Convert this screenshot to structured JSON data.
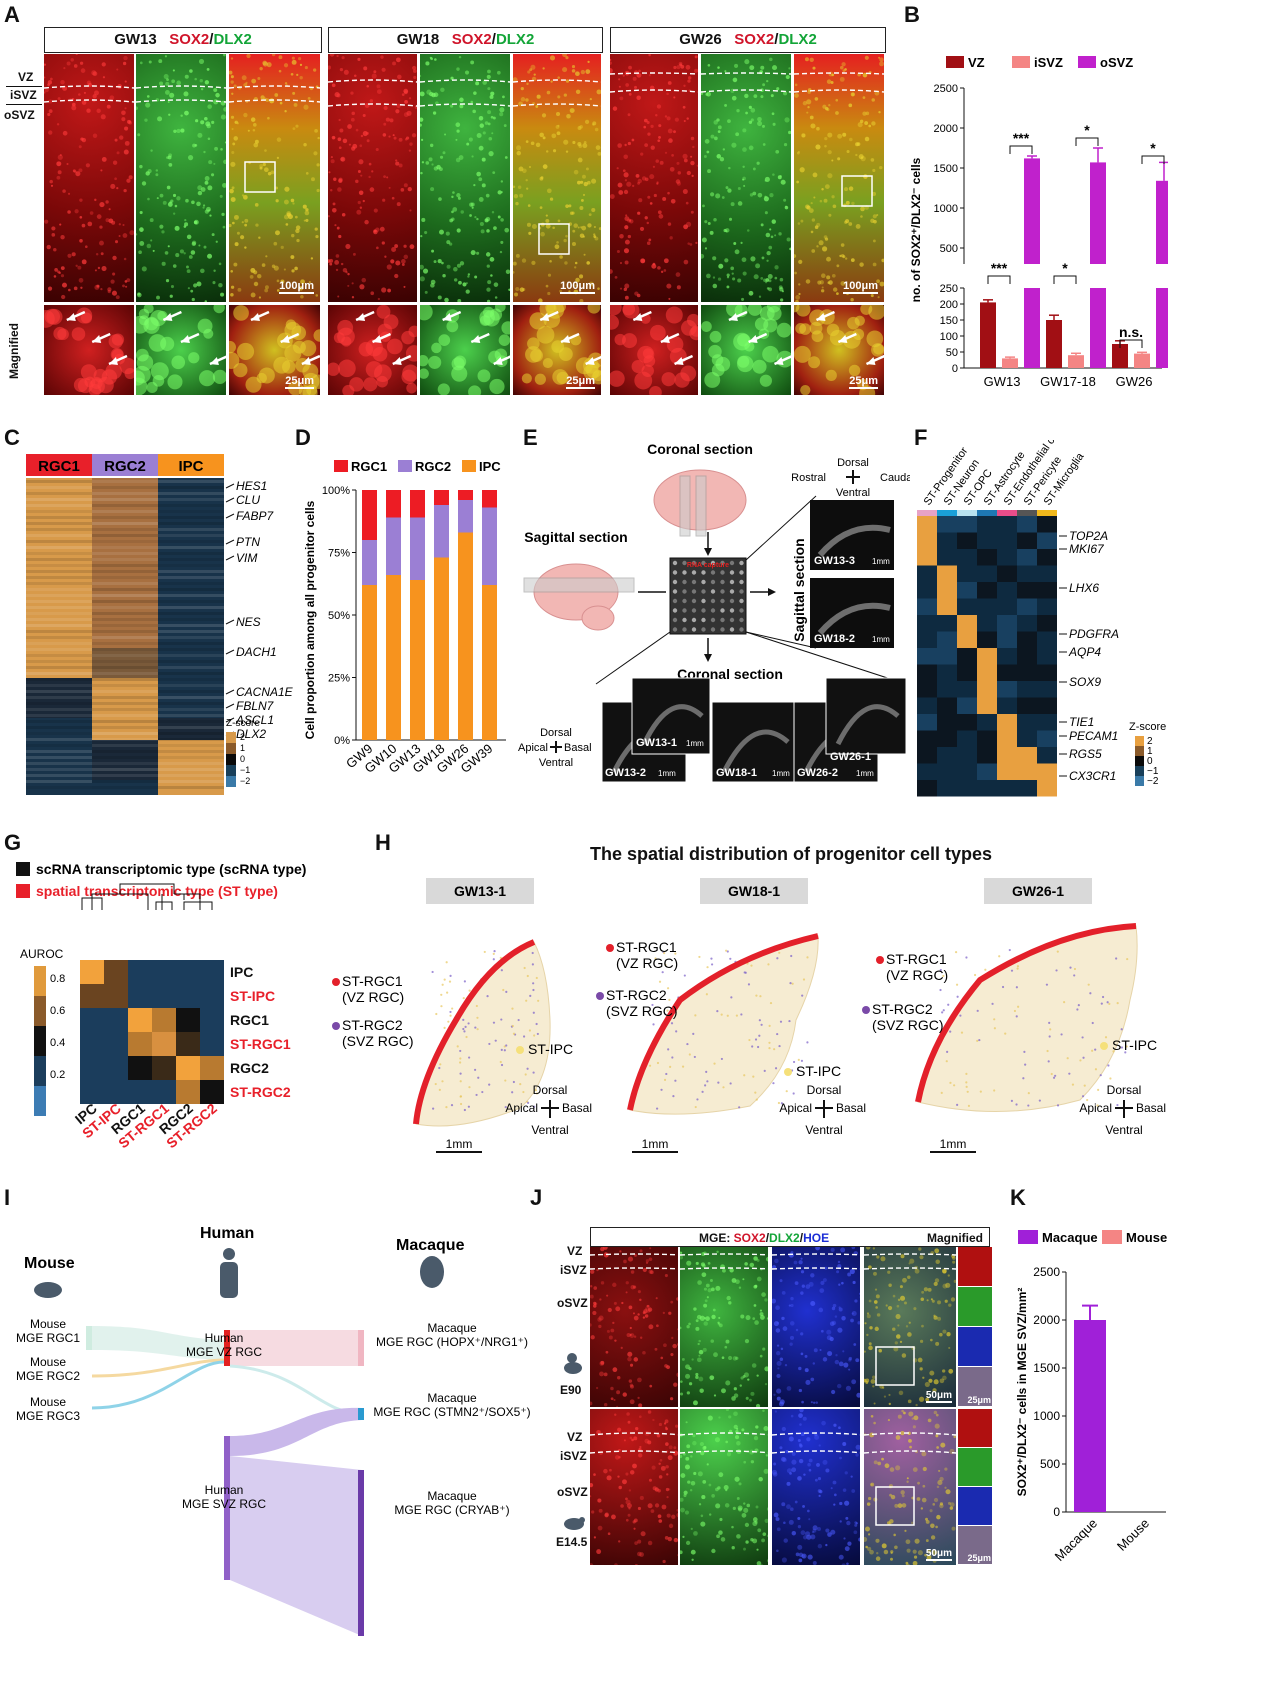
{
  "panels": {
    "A": "A",
    "B": "B",
    "C": "C",
    "D": "D",
    "E": "E",
    "F": "F",
    "G": "G",
    "H": "H",
    "I": "I",
    "J": "J",
    "K": "K"
  },
  "panelA": {
    "headers": [
      {
        "week": "GW13",
        "m1": "SOX2",
        "sep": "/",
        "m2": "DLX2"
      },
      {
        "week": "GW18",
        "m1": "SOX2",
        "sep": "/",
        "m2": "DLX2"
      },
      {
        "week": "GW26",
        "m1": "SOX2",
        "sep": "/",
        "m2": "DLX2"
      }
    ],
    "zones": {
      "vz": "VZ",
      "isvz": "iSVZ",
      "osvz": "oSVZ"
    },
    "magnified": "Magnified",
    "scale_large": "100μm",
    "scale_small": "25μm"
  },
  "panelB": {
    "legend": [
      "VZ",
      "iSVZ",
      "oSVZ"
    ],
    "ylabel": "no. of SOX2⁺/DLX2⁻ cells",
    "sig": [
      "***",
      "*",
      "*",
      "***",
      "*",
      "n.s."
    ]
  },
  "chart_data": [
    {
      "type": "bar",
      "id": "B",
      "title": "",
      "categories": [
        "GW13",
        "GW17-18",
        "GW26"
      ],
      "series": [
        {
          "name": "VZ",
          "color": "#a10f14",
          "values": [
            205,
            150,
            75
          ],
          "errors": [
            8,
            15,
            10
          ]
        },
        {
          "name": "iSVZ",
          "color": "#f48584",
          "values": [
            30,
            40,
            45
          ],
          "errors": [
            4,
            6,
            4
          ]
        },
        {
          "name": "oSVZ",
          "color": "#c021cc",
          "values": [
            1620,
            1570,
            1340
          ],
          "errors": [
            30,
            180,
            230
          ]
        }
      ],
      "ylabel": "no. of SOX2⁺/DLX2⁻ cells",
      "yticks_low": [
        "0",
        "50",
        "100",
        "150",
        "200",
        "250"
      ],
      "yticks_high": [
        "500",
        "1000",
        "1500",
        "2000",
        "2500"
      ],
      "ylim": [
        0,
        2500
      ]
    },
    {
      "type": "bar",
      "id": "D",
      "stacked": true,
      "categories": [
        "GW9",
        "GW10",
        "GW13",
        "GW18",
        "GW26",
        "GW39"
      ],
      "series": [
        {
          "name": "IPC",
          "color": "#f7931e",
          "values": [
            62,
            66,
            64,
            73,
            83,
            62
          ]
        },
        {
          "name": "RGC2",
          "color": "#9b7fd4",
          "values": [
            18,
            23,
            25,
            21,
            13,
            31
          ]
        },
        {
          "name": "RGC1",
          "color": "#ed1c24",
          "values": [
            20,
            11,
            11,
            6,
            4,
            7
          ]
        }
      ],
      "legend": [
        "RGC1",
        "RGC2",
        "IPC"
      ],
      "ylabel": "Cell proportion among all progenitor cells",
      "yticks": [
        "0%",
        "25%",
        "50%",
        "75%",
        "100%"
      ],
      "ylim": [
        0,
        100
      ]
    },
    {
      "type": "bar",
      "id": "K",
      "categories": [
        "Macaque",
        "Mouse"
      ],
      "values": [
        2000,
        0
      ],
      "errors": [
        150,
        0
      ],
      "colors": [
        "#a020d8",
        "#f48584"
      ],
      "legend": [
        "Macaque",
        "Mouse"
      ],
      "ylabel": "SOX2⁺/DLX2⁻ cells in MGE SVZ/mm²",
      "yticks": [
        "0",
        "500",
        "1000",
        "1500",
        "2000",
        "2500"
      ],
      "ylim": [
        0,
        2500
      ]
    }
  ],
  "panelC": {
    "groups": [
      "RGC1",
      "RGC2",
      "IPC"
    ],
    "genes": [
      "HES1",
      "CLU",
      "FABP7",
      "PTN",
      "VIM",
      "NES",
      "DACH1",
      "CACNA1E",
      "FBLN7",
      "ASCL1",
      "DLX2"
    ],
    "zscore": "Z-score",
    "ticks": [
      "2",
      "1",
      "0",
      "−1",
      "−2"
    ]
  },
  "panelE": {
    "coronal_top": "Coronal section",
    "sagittal": "Sagittal section",
    "coronal_bottom": "Coronal section",
    "dorsal": "Dorsal",
    "ventral": "Ventral",
    "rostral": "Rostral",
    "caudal": "Caudal",
    "apical": "Apical",
    "basal": "Basal",
    "sagittal_vertical": "Sagittal section",
    "chip": "RNA capture",
    "slices": [
      "GW13-3",
      "GW18-2",
      "GW13-1",
      "GW13-2",
      "GW18-1",
      "GW26-2",
      "GW26-1"
    ],
    "mm": "1mm"
  },
  "panelF": {
    "columns": [
      "ST-Progenitor",
      "ST-Neuron",
      "ST-OPC",
      "ST-Astrocyte",
      "ST-Endothelial cell",
      "ST-Pericyte",
      "ST-Microglia"
    ],
    "col_colors": [
      "#e7a2c6",
      "#1aa0d8",
      "#b8e2ef",
      "#1e78b4",
      "#e84d8a",
      "#555555",
      "#f0b81c"
    ],
    "genes": [
      "TOP2A",
      "MKI67",
      "LHX6",
      "PDGFRA",
      "AQP4",
      "SOX9",
      "TIE1",
      "PECAM1",
      "RGS5",
      "CX3CR1"
    ],
    "zscore": "Z-score",
    "ticks": [
      "2",
      "1",
      "0",
      "−1",
      "−2"
    ]
  },
  "panelG": {
    "legend_sc": "scRNA transcriptomic type (scRNA type)",
    "legend_st": "spatial transcriptomic type (ST type)",
    "auroc": "AUROC",
    "ticks": [
      "0.8",
      "0.6",
      "0.4",
      "0.2"
    ],
    "rows": [
      {
        "label": "IPC",
        "st": false
      },
      {
        "label": "ST-IPC",
        "st": true
      },
      {
        "label": "RGC1",
        "st": false
      },
      {
        "label": "ST-RGC1",
        "st": true
      },
      {
        "label": "RGC2",
        "st": false
      },
      {
        "label": "ST-RGC2",
        "st": true
      }
    ]
  },
  "panelH": {
    "title": "The spatial distribution of progenitor cell types",
    "sections": [
      "GW13-1",
      "GW18-1",
      "GW26-1"
    ],
    "rgc1": "ST-RGC1",
    "rgc1_sub": "(VZ RGC)",
    "rgc2": "ST-RGC2",
    "rgc2_sub": "(SVZ RGC)",
    "ipc": "ST-IPC",
    "dorsal": "Dorsal",
    "ventral": "Ventral",
    "apical": "Apical",
    "basal": "Basal",
    "mm": "1mm"
  },
  "panelI": {
    "species": [
      "Mouse",
      "Human",
      "Macaque"
    ],
    "mouse": [
      "Mouse",
      "MGE RGC1",
      "Mouse",
      "MGE RGC2",
      "Mouse",
      "MGE RGC3"
    ],
    "human": [
      "Human",
      "MGE VZ RGC",
      "Human",
      "MGE SVZ RGC"
    ],
    "macaque": [
      {
        "a": "Macaque",
        "b": "MGE RGC (HOPX",
        "c": "⁺",
        "d": "/NRG1",
        "e": "⁺",
        ")": ")"
      },
      {
        "a": "Macaque",
        "b": "MGE RGC (STMN2",
        "c": "⁺",
        "d": "/SOX5",
        "e": "⁺",
        ")": ")"
      },
      {
        "a": "Macaque",
        "b": "MGE RGC (CRYAB",
        "c": "⁺",
        "d": "",
        "e": "",
        ")": ")"
      }
    ]
  },
  "panelJ": {
    "mge": "MGE: ",
    "sox2": "SOX2",
    "dlx2": "DLX2",
    "hoe": "HOE",
    "sep": "/",
    "magnified": "Magnified",
    "zones": {
      "vz": "VZ",
      "isvz": "iSVZ",
      "osvz": "oSVZ"
    },
    "e90": "E90",
    "e145": "E14.5",
    "s50": "50μm",
    "s25": "25μm"
  },
  "panelK": {
    "legend": [
      "Macaque",
      "Mouse"
    ]
  }
}
